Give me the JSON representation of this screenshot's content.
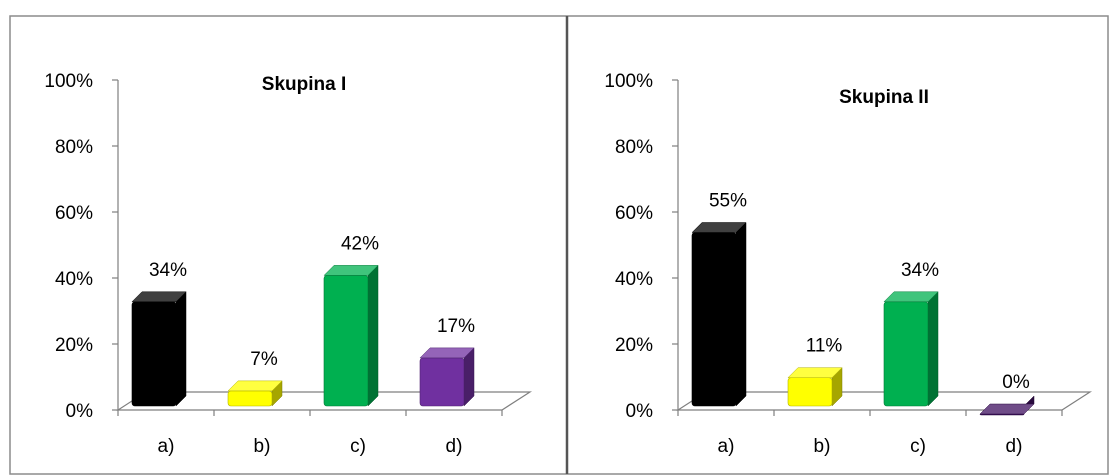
{
  "colors": {
    "frame": "#8c8c8c",
    "axis": "#7f7f7f",
    "black": "#000000",
    "yellow": "#ffff00",
    "green": "#00b050",
    "purple": "#7030a0",
    "darkpurple": "#3f1060"
  },
  "chart_data": [
    {
      "type": "bar",
      "title": "Skupina I",
      "categories": [
        "a)",
        "b)",
        "c)",
        "d)"
      ],
      "values": [
        34,
        7,
        42,
        17
      ],
      "value_labels": [
        "34%",
        "7%",
        "42%",
        "17%"
      ],
      "bar_colors": [
        "#000000",
        "#ffff00",
        "#00b050",
        "#7030a0"
      ],
      "yticks": [
        "0%",
        "20%",
        "40%",
        "60%",
        "80%",
        "100%"
      ],
      "ylim": [
        0,
        100
      ],
      "grid": false,
      "legend": "none"
    },
    {
      "type": "bar",
      "title": "Skupina II",
      "categories": [
        "a)",
        "b)",
        "c)",
        "d)"
      ],
      "values": [
        55,
        11,
        34,
        0
      ],
      "value_labels": [
        "55%",
        "11%",
        "34%",
        "0%"
      ],
      "bar_colors": [
        "#000000",
        "#ffff00",
        "#00b050",
        "#3f1060"
      ],
      "yticks": [
        "0%",
        "20%",
        "40%",
        "60%",
        "80%",
        "100%"
      ],
      "ylim": [
        0,
        100
      ],
      "grid": false,
      "legend": "none"
    }
  ]
}
